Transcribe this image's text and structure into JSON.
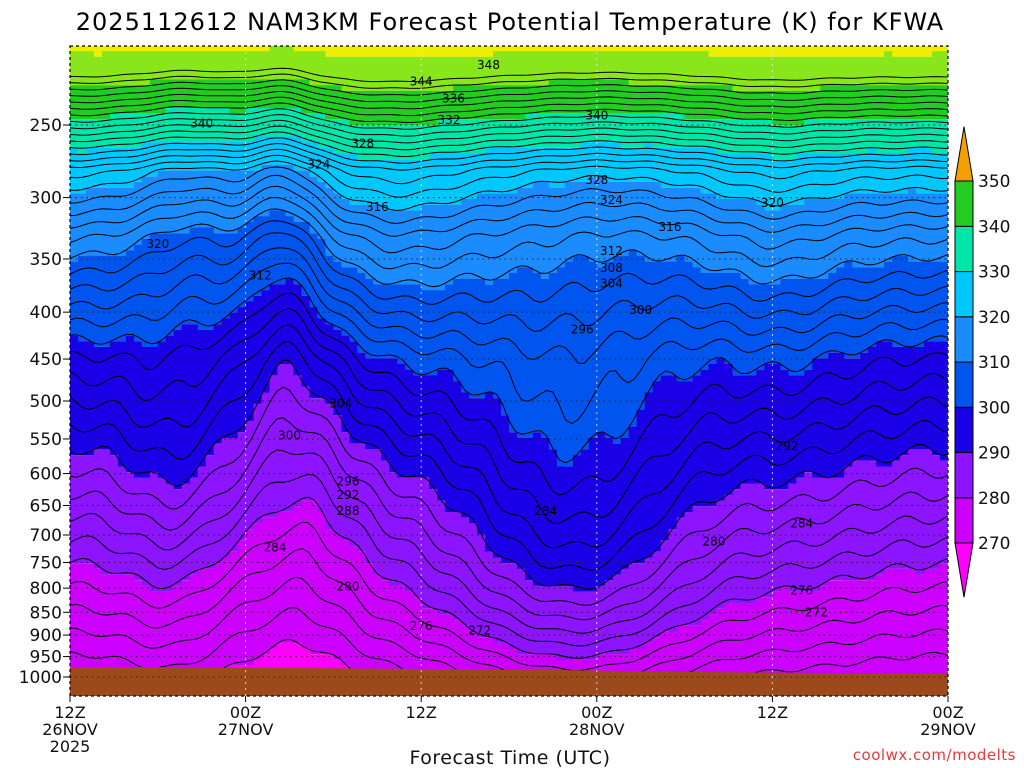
{
  "chart_data": {
    "type": "heatmap",
    "title": "2025112612 NAM3KM Forecast Potential Temperature (K) for KFWA",
    "xlabel": "Forecast Time (UTC)",
    "ylabel": "",
    "credit": "coolwx.com/modelts",
    "y_ticks": [
      "250",
      "300",
      "350",
      "400",
      "450",
      "500",
      "550",
      "600",
      "650",
      "700",
      "750",
      "800",
      "850",
      "900",
      "950",
      "1000"
    ],
    "y_values": [
      250,
      300,
      350,
      400,
      450,
      500,
      550,
      600,
      650,
      700,
      750,
      800,
      850,
      900,
      950,
      1000
    ],
    "ylim": [
      200,
      1030
    ],
    "x_ticks": [
      {
        "hour": 0,
        "line1": "12Z",
        "line2": "26NOV",
        "line3": "2025"
      },
      {
        "hour": 12,
        "line1": "00Z",
        "line2": "27NOV",
        "line3": ""
      },
      {
        "hour": 24,
        "line1": "12Z",
        "line2": "",
        "line3": ""
      },
      {
        "hour": 36,
        "line1": "00Z",
        "line2": "28NOV",
        "line3": ""
      },
      {
        "hour": 48,
        "line1": "12Z",
        "line2": "",
        "line3": ""
      },
      {
        "hour": 60,
        "line1": "00Z",
        "line2": "29NOV",
        "line3": ""
      }
    ],
    "xlim": [
      0,
      60
    ],
    "colorbar": {
      "labels": [
        "270",
        "280",
        "290",
        "300",
        "310",
        "320",
        "330",
        "340",
        "350"
      ],
      "levels": [
        270,
        280,
        290,
        300,
        310,
        320,
        330,
        340,
        350
      ],
      "colors": [
        "#ff00ff",
        "#cc00ff",
        "#8c14ff",
        "#1a00e6",
        "#0055ee",
        "#1a8cff",
        "#00c8ff",
        "#00e6aa",
        "#22cc22",
        "#88e61a",
        "#eeee00",
        "#f5a000"
      ],
      "bounds": [
        260,
        270,
        280,
        290,
        300,
        310,
        320,
        330,
        340,
        350,
        360
      ]
    },
    "contour_labels": [
      {
        "text": "348",
        "hour": 28.6,
        "p": 215
      },
      {
        "text": "344",
        "hour": 24.0,
        "p": 224
      },
      {
        "text": "336",
        "hour": 26.2,
        "p": 234
      },
      {
        "text": "332",
        "hour": 25.9,
        "p": 247
      },
      {
        "text": "340",
        "hour": 9.0,
        "p": 249
      },
      {
        "text": "340",
        "hour": 36.0,
        "p": 244
      },
      {
        "text": "328",
        "hour": 20.0,
        "p": 262
      },
      {
        "text": "324",
        "hour": 17.0,
        "p": 276
      },
      {
        "text": "328",
        "hour": 36.0,
        "p": 287
      },
      {
        "text": "324",
        "hour": 37.0,
        "p": 302
      },
      {
        "text": "320",
        "hour": 48.0,
        "p": 304
      },
      {
        "text": "316",
        "hour": 21.0,
        "p": 307
      },
      {
        "text": "316",
        "hour": 41.0,
        "p": 323
      },
      {
        "text": "320",
        "hour": 6.0,
        "p": 337
      },
      {
        "text": "312",
        "hour": 37.0,
        "p": 343
      },
      {
        "text": "308",
        "hour": 37.0,
        "p": 358
      },
      {
        "text": "312",
        "hour": 13.0,
        "p": 365
      },
      {
        "text": "304",
        "hour": 37.0,
        "p": 372
      },
      {
        "text": "300",
        "hour": 39.0,
        "p": 398
      },
      {
        "text": "296",
        "hour": 35.0,
        "p": 418
      },
      {
        "text": "304",
        "hour": 18.5,
        "p": 503
      },
      {
        "text": "300",
        "hour": 15.0,
        "p": 545
      },
      {
        "text": "292",
        "hour": 49.0,
        "p": 560
      },
      {
        "text": "296",
        "hour": 19.0,
        "p": 612
      },
      {
        "text": "292",
        "hour": 19.0,
        "p": 633
      },
      {
        "text": "284",
        "hour": 32.5,
        "p": 659
      },
      {
        "text": "288",
        "hour": 19.0,
        "p": 659
      },
      {
        "text": "284",
        "hour": 50.0,
        "p": 680
      },
      {
        "text": "284",
        "hour": 14.0,
        "p": 722
      },
      {
        "text": "280",
        "hour": 44.0,
        "p": 712
      },
      {
        "text": "280",
        "hour": 19.0,
        "p": 797
      },
      {
        "text": "276",
        "hour": 50.0,
        "p": 805
      },
      {
        "text": "272",
        "hour": 51.0,
        "p": 850
      },
      {
        "text": "276",
        "hour": 24.0,
        "p": 880
      },
      {
        "text": "272",
        "hour": 28.0,
        "p": 890
      }
    ]
  }
}
